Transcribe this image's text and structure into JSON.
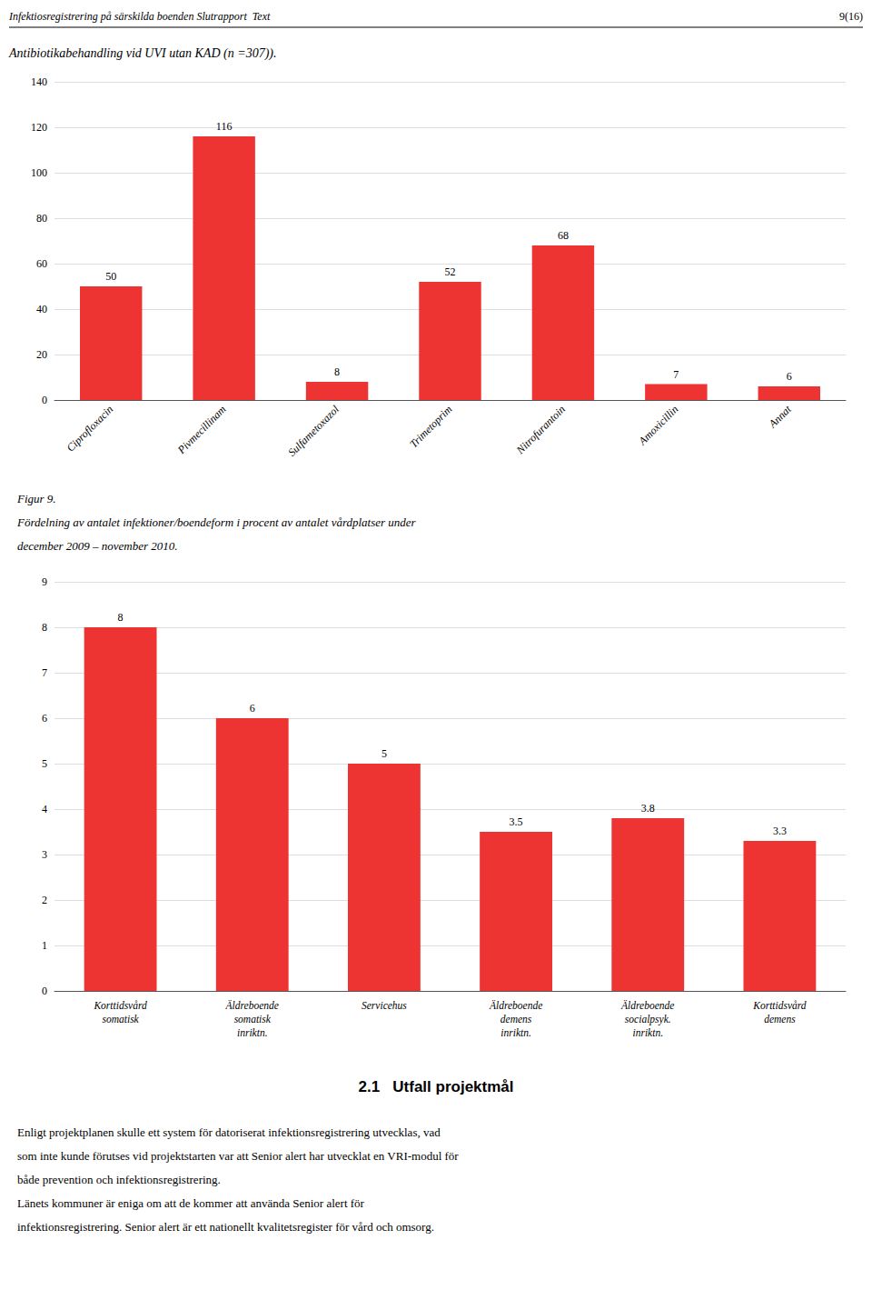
{
  "chart_data": [
    {
      "type": "bar",
      "title": "Antibiotikabehandling vid UVI utan KAD (n =307)).",
      "annotations": [
        "Infektiosregistrering på särskilda boenden Slutrapport  Text",
        "9(16)"
      ],
      "categories": [
        "Ciprofloxacin",
        "Pivmecillinam",
        "Sulfametoxazol",
        "Trimetoprim",
        "Nitrofurantoin",
        "Amoxicillin",
        "Annat"
      ],
      "values": [
        50,
        116,
        8,
        52,
        68,
        7,
        6
      ],
      "color": "#EE3333",
      "ylim": [
        0,
        140
      ],
      "yticks": [
        0,
        20,
        40,
        60,
        80,
        100,
        120,
        140
      ],
      "grid": true,
      "data_labels": true
    },
    {
      "type": "bar",
      "title": "Figur 9.",
      "subtitle": "Fördelning av antalet infektioner/boendeform i procent av antalet vårdplatser under\ndecember 2009 – november 2010.",
      "annotations": [
        "2.1   Utfall projektmål",
        "Enligt projektplanen skulle ett system för datoriserat infektionsregistrering utvecklas, vad",
        "som inte kunde förutses vid projektstarten var att Senior alert har utvecklat en VRI-modul för",
        "både prevention och infektionsregistrering.",
        "Länets kommuner är eniga om att de kommer att använda Senior alert för",
        "infektionsregistrering. Senior alert är ett nationellt kvalitetsregister för vård och omsorg."
      ],
      "categories": [
        "Korttidsvård\nsomatisk",
        "Äldreboende\nsomatisk\ninriktn.",
        "Servicehus",
        "Äldreboende\ndemens\ninriktn.",
        "Äldreboende\nsocialpsyk.\ninriktn.",
        "Korttidsvård\ndemens"
      ],
      "values": [
        8,
        6,
        5,
        3.5,
        3.8,
        3.3
      ],
      "color": "#EE3333",
      "ylim": [
        0,
        9
      ],
      "yticks": [
        0,
        1,
        2,
        3,
        4,
        5,
        6,
        7,
        8,
        9
      ],
      "grid": true,
      "data_labels": true
    }
  ]
}
